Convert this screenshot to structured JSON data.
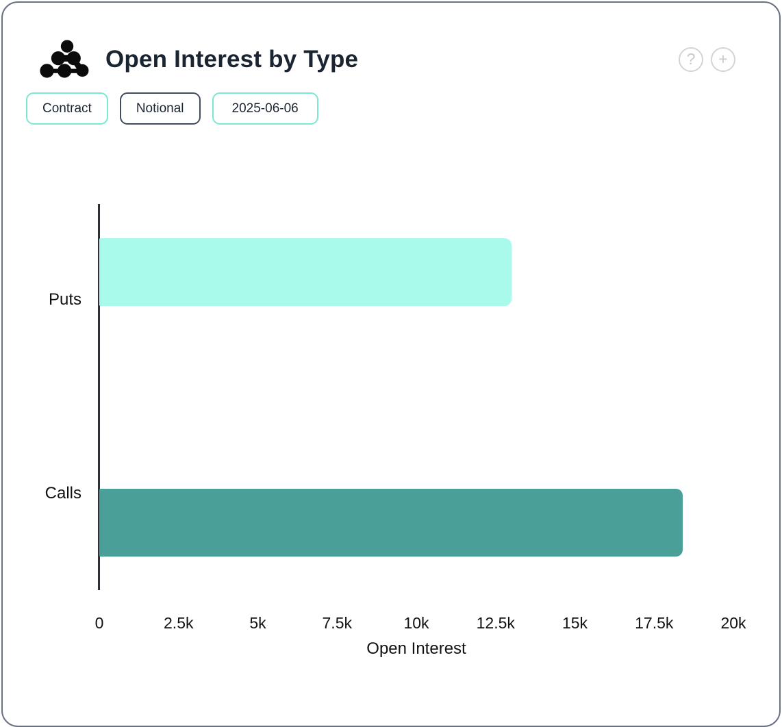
{
  "header": {
    "title": "Open Interest by Type",
    "logo_icon": "amberdata-dots-logo",
    "help_label": "?",
    "add_label": "+"
  },
  "toolbar": {
    "buttons": [
      {
        "label": "Contract",
        "style": "teal"
      },
      {
        "label": "Notional",
        "style": "dark"
      },
      {
        "label": "2025-06-06",
        "style": "teal"
      }
    ]
  },
  "colors": {
    "card_border": "#697284",
    "title_text": "#1b2431",
    "chip_teal_border": "#79e9d3",
    "chip_dark_border": "#424c5e",
    "axis_line": "#2b3137",
    "chart_text": "#111111",
    "puts_bar": "#aafaec",
    "calls_bar": "#4aa099"
  },
  "chart_data": {
    "type": "bar",
    "orientation": "horizontal",
    "title": "Open Interest by Type",
    "categories": [
      "Puts",
      "Calls"
    ],
    "values": [
      13000,
      18400
    ],
    "series_colors": [
      "#aafaec",
      "#4aa099"
    ],
    "xlabel": "Open Interest",
    "ylabel": "",
    "xlim": [
      0,
      20000
    ],
    "xticks": [
      {
        "value": 0,
        "label": "0"
      },
      {
        "value": 2500,
        "label": "2.5k"
      },
      {
        "value": 5000,
        "label": "5k"
      },
      {
        "value": 7500,
        "label": "7.5k"
      },
      {
        "value": 10000,
        "label": "10k"
      },
      {
        "value": 12500,
        "label": "12.5k"
      },
      {
        "value": 15000,
        "label": "15k"
      },
      {
        "value": 17500,
        "label": "17.5k"
      },
      {
        "value": 20000,
        "label": "20k"
      }
    ],
    "grid": false,
    "legend": false
  }
}
